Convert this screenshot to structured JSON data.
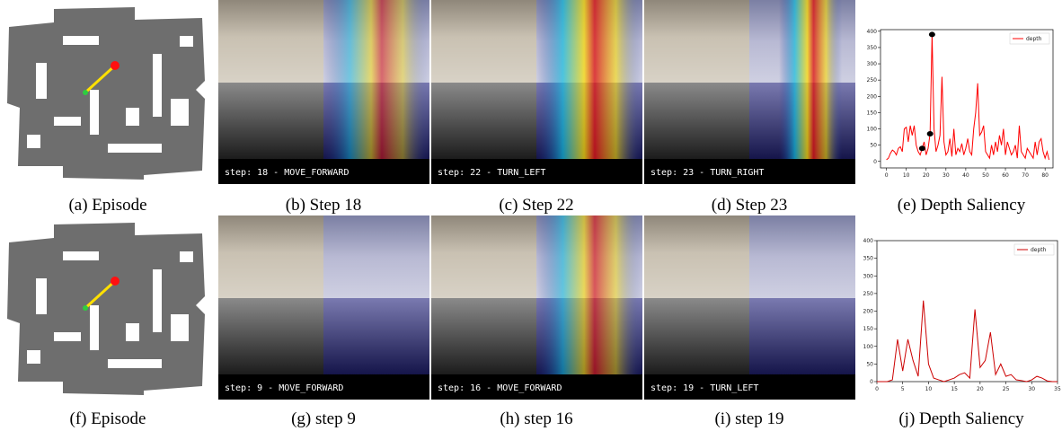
{
  "panels": [
    {
      "caption": "(a) Episode"
    },
    {
      "caption": "(b) Step 18",
      "frame_label": "step: 18 - MOVE_FORWARD"
    },
    {
      "caption": "(c) Step 22",
      "frame_label": "step: 22 - TURN_LEFT"
    },
    {
      "caption": "(d) Step 23",
      "frame_label": "step: 23 - TURN_RIGHT"
    },
    {
      "caption": "(f) Episode"
    },
    {
      "caption": "(g) step 9",
      "frame_label": "step: 9 - MOVE_FORWARD"
    },
    {
      "caption": "(h) step 16",
      "frame_label": "step: 16 - MOVE_FORWARD"
    },
    {
      "caption": "(i) step 19",
      "frame_label": "step: 19 - TURN_LEFT"
    }
  ],
  "chart_data": [
    {
      "type": "line",
      "caption": "(e) Depth Saliency",
      "legend": "upper right",
      "x": [
        0,
        1,
        2,
        3,
        4,
        5,
        6,
        7,
        8,
        9,
        10,
        11,
        12,
        13,
        14,
        15,
        16,
        17,
        18,
        19,
        20,
        21,
        22,
        23,
        24,
        25,
        26,
        27,
        28,
        29,
        30,
        31,
        32,
        33,
        34,
        35,
        36,
        37,
        38,
        39,
        40,
        41,
        42,
        43,
        44,
        45,
        46,
        47,
        48,
        49,
        50,
        51,
        52,
        53,
        54,
        55,
        56,
        57,
        58,
        59,
        60,
        61,
        62,
        63,
        64,
        65,
        66,
        67,
        68,
        69,
        70,
        71,
        72,
        73,
        74,
        75,
        76,
        77,
        78,
        79,
        80,
        81,
        82
      ],
      "series": [
        {
          "name": "depth",
          "color": "#ff0000",
          "values": [
            5,
            10,
            25,
            35,
            30,
            20,
            40,
            45,
            30,
            100,
            105,
            60,
            110,
            80,
            110,
            50,
            30,
            20,
            40,
            60,
            20,
            40,
            85,
            390,
            100,
            30,
            50,
            80,
            260,
            60,
            20,
            30,
            70,
            15,
            100,
            20,
            40,
            30,
            55,
            20,
            40,
            70,
            30,
            20,
            100,
            150,
            240,
            80,
            90,
            110,
            30,
            20,
            10,
            50,
            20,
            60,
            30,
            80,
            50,
            100,
            20,
            60,
            40,
            20,
            30,
            50,
            10,
            110,
            30,
            20,
            10,
            40,
            30,
            20,
            10,
            60,
            20,
            60,
            70,
            30,
            10,
            30,
            5
          ]
        }
      ],
      "highlight_x": [
        18,
        22,
        23
      ],
      "xlim": [
        -3,
        84
      ],
      "xticks": [
        0,
        10,
        20,
        30,
        40,
        50,
        60,
        70,
        80
      ],
      "ylim": [
        -20,
        405
      ],
      "yticks": [
        0,
        50,
        100,
        150,
        200,
        250,
        300,
        350,
        400
      ]
    },
    {
      "type": "line",
      "caption": "(j) Depth Saliency",
      "legend": "upper right",
      "x": [
        0,
        1,
        2,
        3,
        4,
        5,
        6,
        7,
        8,
        9,
        10,
        11,
        12,
        13,
        14,
        15,
        16,
        17,
        18,
        19,
        20,
        21,
        22,
        23,
        24,
        25,
        26,
        27,
        28,
        29,
        30,
        31,
        32,
        33,
        34,
        35
      ],
      "series": [
        {
          "name": "depth",
          "color": "#cc0000",
          "values": [
            0,
            0,
            0,
            5,
            120,
            30,
            120,
            60,
            15,
            230,
            50,
            10,
            5,
            0,
            5,
            10,
            20,
            25,
            10,
            205,
            40,
            60,
            140,
            20,
            50,
            15,
            20,
            5,
            3,
            0,
            5,
            15,
            10,
            2,
            0,
            0
          ]
        }
      ],
      "xlim": [
        0,
        35
      ],
      "xticks": [
        0,
        5,
        10,
        15,
        20,
        25,
        30,
        35
      ],
      "ylim": [
        0,
        400
      ],
      "yticks": [
        0,
        50,
        100,
        150,
        200,
        250,
        300,
        350,
        400
      ]
    }
  ]
}
